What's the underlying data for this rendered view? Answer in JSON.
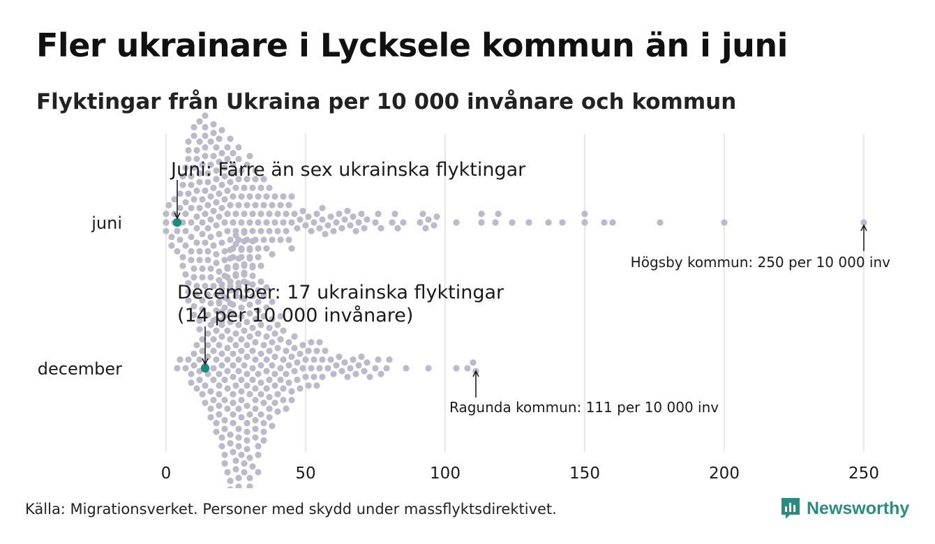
{
  "title": "Fler ukrainare i Lycksele kommun än i juni",
  "subtitle": "Flyktingar från Ukraina per 10 000 invånare och kommun",
  "source": "Källa: Migrationsverket. Personer med skydd under massflyktsdirektivet.",
  "logo": {
    "name": "Newsworthy",
    "color": "#2a8c80"
  },
  "colors": {
    "dot": "#bcbaca",
    "highlight": "#1a8a7a",
    "grid": "#cfcfcf",
    "text": "#1a1a1a"
  },
  "chart_data": {
    "type": "scatter",
    "subtype": "beeswarm",
    "title": "Fler ukrainare i Lycksele kommun än i juni",
    "subtitle": "Flyktingar från Ukraina per 10 000 invånare och kommun",
    "xlabel": "",
    "ylabel": "",
    "xlim": [
      0,
      250
    ],
    "xticks": [
      0,
      50,
      100,
      150,
      200,
      250
    ],
    "grid": "vertical",
    "categories": [
      "juni",
      "december"
    ],
    "series": [
      {
        "name": "juni",
        "highlight": {
          "label": "Lycksele kommun",
          "value": 4
        },
        "values": [
          0,
          0,
          0,
          1,
          2,
          2,
          3,
          3,
          3,
          4,
          4,
          5,
          5,
          5,
          6,
          6,
          6,
          6,
          6,
          7,
          7,
          7,
          7,
          7,
          7,
          8,
          8,
          8,
          8,
          8,
          8,
          8,
          9,
          9,
          9,
          9,
          9,
          9,
          9,
          10,
          10,
          10,
          10,
          10,
          10,
          10,
          10,
          11,
          11,
          11,
          11,
          11,
          11,
          11,
          11,
          12,
          12,
          12,
          12,
          12,
          12,
          12,
          12,
          12,
          13,
          13,
          13,
          13,
          13,
          13,
          13,
          13,
          14,
          14,
          14,
          14,
          14,
          14,
          14,
          14,
          14,
          15,
          15,
          15,
          15,
          15,
          15,
          15,
          15,
          16,
          16,
          16,
          16,
          16,
          16,
          16,
          16,
          17,
          17,
          17,
          17,
          17,
          17,
          17,
          17,
          18,
          18,
          18,
          18,
          18,
          18,
          18,
          18,
          19,
          19,
          19,
          19,
          19,
          19,
          19,
          19,
          20,
          20,
          20,
          20,
          20,
          20,
          20,
          20,
          21,
          21,
          21,
          21,
          21,
          21,
          21,
          22,
          22,
          22,
          22,
          22,
          22,
          22,
          23,
          23,
          23,
          23,
          23,
          23,
          23,
          24,
          24,
          24,
          24,
          24,
          24,
          24,
          25,
          25,
          25,
          25,
          25,
          25,
          26,
          26,
          26,
          26,
          26,
          26,
          27,
          27,
          27,
          27,
          27,
          27,
          28,
          28,
          28,
          28,
          28,
          29,
          29,
          29,
          29,
          29,
          30,
          30,
          30,
          30,
          30,
          31,
          31,
          31,
          31,
          32,
          32,
          32,
          32,
          33,
          33,
          33,
          33,
          34,
          34,
          34,
          34,
          35,
          35,
          35,
          36,
          36,
          36,
          37,
          37,
          37,
          38,
          38,
          38,
          39,
          39,
          40,
          40,
          41,
          41,
          42,
          42,
          43,
          43,
          44,
          44,
          45,
          45,
          45,
          46,
          47,
          48,
          49,
          50,
          51,
          52,
          53,
          54,
          55,
          56,
          56,
          57,
          58,
          59,
          60,
          61,
          62,
          63,
          64,
          65,
          66,
          67,
          68,
          69,
          70,
          71,
          72,
          75,
          76,
          77,
          81,
          82,
          83,
          85,
          91,
          92,
          93,
          94,
          96,
          97,
          104,
          113,
          113,
          118,
          119,
          124,
          130,
          137,
          142,
          150,
          150,
          157,
          160,
          177,
          200,
          250
        ]
      },
      {
        "name": "december",
        "highlight": {
          "label": "Lycksele kommun",
          "value": 14
        },
        "values": [
          4,
          5,
          7,
          8,
          9,
          9,
          10,
          10,
          11,
          11,
          12,
          12,
          12,
          13,
          13,
          13,
          14,
          14,
          14,
          15,
          15,
          15,
          15,
          16,
          16,
          16,
          16,
          17,
          17,
          17,
          17,
          17,
          18,
          18,
          18,
          18,
          18,
          18,
          19,
          19,
          19,
          19,
          19,
          19,
          19,
          20,
          20,
          20,
          20,
          20,
          20,
          20,
          20,
          21,
          21,
          21,
          21,
          21,
          21,
          21,
          21,
          21,
          22,
          22,
          22,
          22,
          22,
          22,
          22,
          22,
          22,
          23,
          23,
          23,
          23,
          23,
          23,
          23,
          23,
          23,
          23,
          24,
          24,
          24,
          24,
          24,
          24,
          24,
          24,
          24,
          24,
          25,
          25,
          25,
          25,
          25,
          25,
          25,
          25,
          25,
          25,
          25,
          26,
          26,
          26,
          26,
          26,
          26,
          26,
          26,
          26,
          26,
          26,
          27,
          27,
          27,
          27,
          27,
          27,
          27,
          27,
          27,
          27,
          27,
          28,
          28,
          28,
          28,
          28,
          28,
          28,
          28,
          28,
          28,
          28,
          28,
          29,
          29,
          29,
          29,
          29,
          29,
          29,
          29,
          29,
          29,
          29,
          30,
          30,
          30,
          30,
          30,
          30,
          30,
          30,
          30,
          30,
          31,
          31,
          31,
          31,
          31,
          31,
          31,
          31,
          31,
          31,
          32,
          32,
          32,
          32,
          32,
          32,
          32,
          32,
          32,
          33,
          33,
          33,
          33,
          33,
          33,
          33,
          33,
          34,
          34,
          34,
          34,
          34,
          34,
          34,
          35,
          35,
          35,
          35,
          35,
          35,
          35,
          36,
          36,
          36,
          36,
          36,
          36,
          37,
          37,
          37,
          37,
          37,
          37,
          38,
          38,
          38,
          38,
          38,
          39,
          39,
          39,
          39,
          39,
          40,
          40,
          40,
          40,
          41,
          41,
          41,
          41,
          42,
          42,
          42,
          42,
          43,
          43,
          43,
          44,
          44,
          44,
          45,
          45,
          45,
          46,
          46,
          46,
          47,
          47,
          48,
          48,
          49,
          49,
          50,
          50,
          51,
          51,
          52,
          52,
          53,
          53,
          54,
          54,
          55,
          55,
          56,
          56,
          57,
          58,
          59,
          60,
          61,
          62,
          63,
          64,
          65,
          66,
          67,
          68,
          69,
          70,
          71,
          72,
          73,
          75,
          76,
          77,
          79,
          80,
          86,
          94,
          104,
          108,
          110,
          111
        ]
      }
    ],
    "annotations": [
      {
        "series": "juni",
        "text": "Juni: Färre än sex ukrainska flyktingar",
        "target": 4,
        "position": "above"
      },
      {
        "series": "juni",
        "text": "Högsby kommun: 250 per 10 000 inv",
        "target": 250,
        "position": "below"
      },
      {
        "series": "december",
        "text": "December: 17 ukrainska flyktingar",
        "text2": "(14 per 10 000 invånare)",
        "target": 14,
        "position": "above"
      },
      {
        "series": "december",
        "text": "Ragunda kommun: 111 per 10 000 inv",
        "target": 111,
        "position": "below"
      }
    ]
  }
}
